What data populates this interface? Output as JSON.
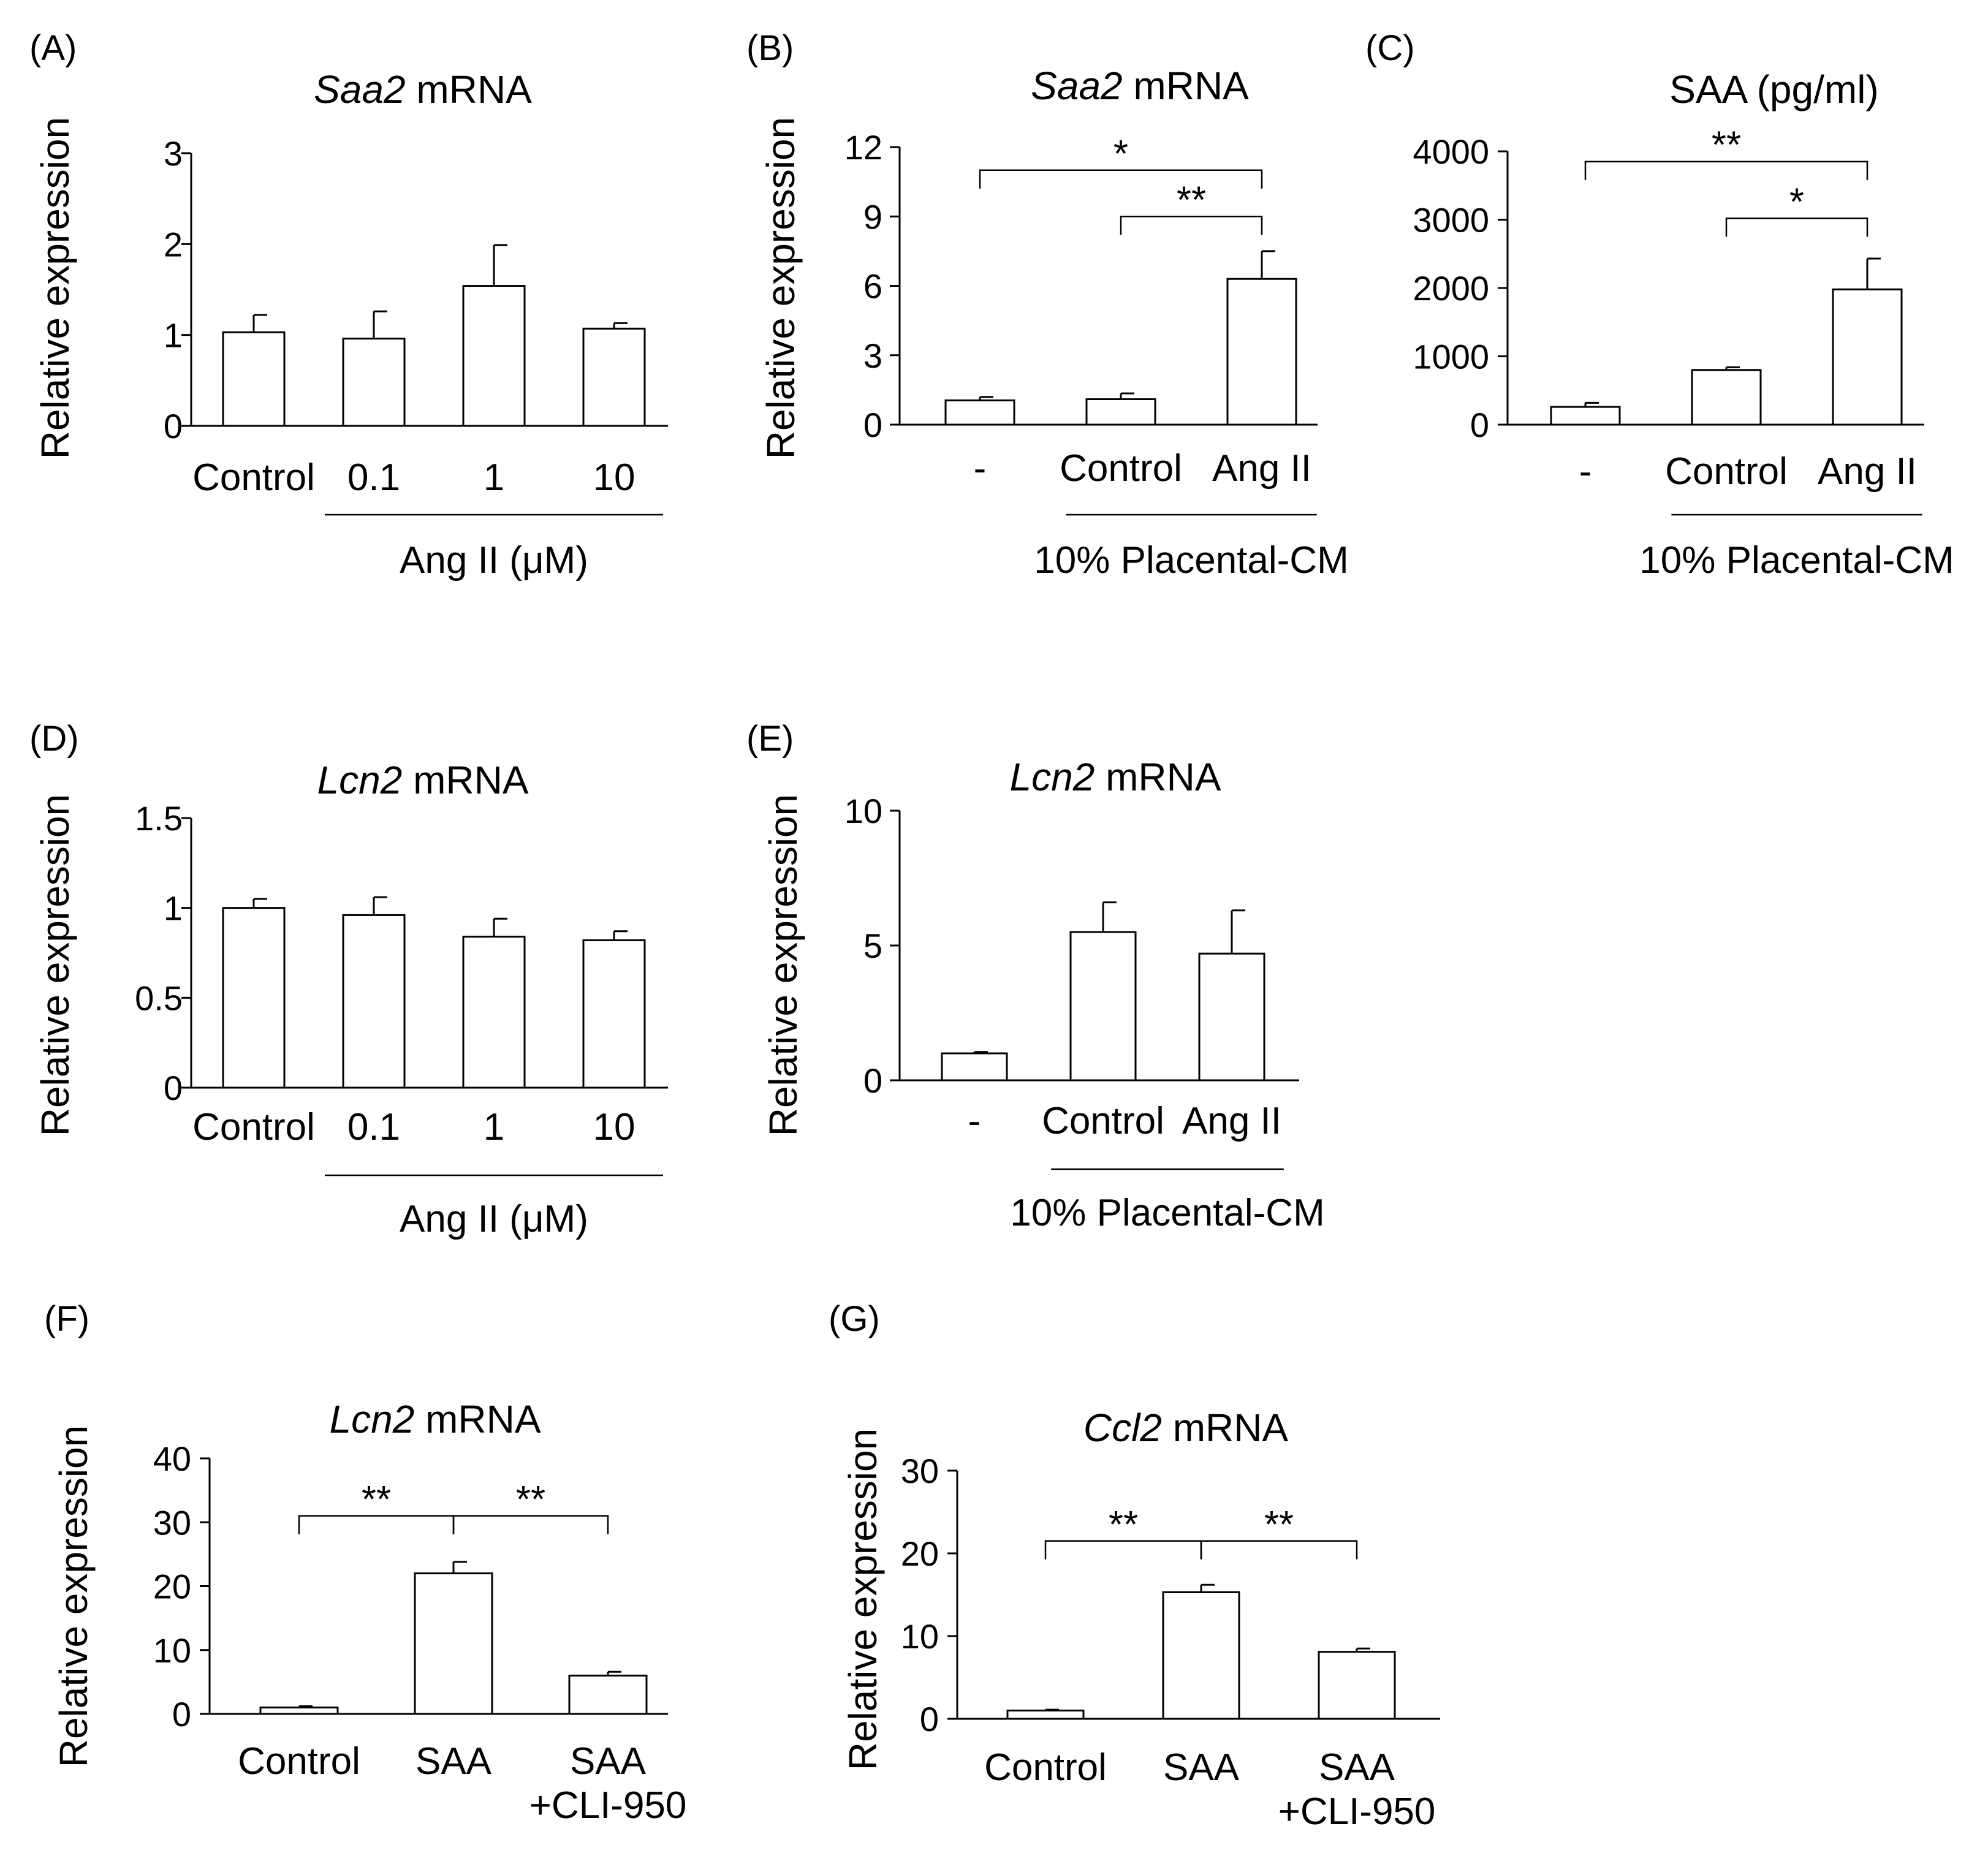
{
  "chart_data": [
    {
      "panel": "(A)",
      "type": "bar",
      "title_italic": "Saa2",
      "title_rest": " mRNA",
      "ylabel": "Relative expression",
      "ylim": [
        0,
        3
      ],
      "yticks": [
        0,
        1,
        2,
        3
      ],
      "categories": [
        "Control",
        "0.1",
        "1",
        "10"
      ],
      "values": [
        1.03,
        0.96,
        1.54,
        1.07
      ],
      "errors": [
        0.19,
        0.3,
        0.45,
        0.06
      ],
      "groups": [
        {
          "label": "Ang II (μM)",
          "from": 1,
          "to": 3
        }
      ],
      "significance": []
    },
    {
      "panel": "(B)",
      "type": "bar",
      "title_italic": "Saa2",
      "title_rest": " mRNA",
      "ylabel": "Relative expression",
      "ylim": [
        0,
        12
      ],
      "yticks": [
        0,
        3,
        6,
        9,
        12
      ],
      "categories": [
        "-",
        "Control",
        "Ang II"
      ],
      "values": [
        1.05,
        1.1,
        6.3
      ],
      "errors": [
        0.15,
        0.25,
        1.2
      ],
      "groups": [
        {
          "label": "10% Placental-CM",
          "from": 1,
          "to": 2
        }
      ],
      "significance": [
        {
          "from": 0,
          "to": 2,
          "label": "*",
          "y": 11.0
        },
        {
          "from": 1,
          "to": 2,
          "label": "**",
          "y": 9.0
        }
      ]
    },
    {
      "panel": "(C)",
      "type": "bar",
      "title_italic": "",
      "title_rest": "SAA (pg/ml)",
      "ylabel": "",
      "ylim": [
        0,
        4000
      ],
      "yticks": [
        0,
        1000,
        2000,
        3000,
        4000
      ],
      "categories": [
        "-",
        "Control",
        "Ang II"
      ],
      "values": [
        260,
        800,
        1980
      ],
      "errors": [
        60,
        40,
        450
      ],
      "groups": [
        {
          "label": "10% Placental-CM",
          "from": 1,
          "to": 2
        }
      ],
      "significance": [
        {
          "from": 0,
          "to": 2,
          "label": "**",
          "y": 3850
        },
        {
          "from": 1,
          "to": 2,
          "label": "*",
          "y": 3020
        }
      ]
    },
    {
      "panel": "(D)",
      "type": "bar",
      "title_italic": "Lcn2",
      "title_rest": " mRNA",
      "ylabel": "Relative expression",
      "ylim": [
        0,
        1.5
      ],
      "yticks": [
        0,
        0.5,
        1,
        1.5
      ],
      "categories": [
        "Control",
        "0.1",
        "1",
        "10"
      ],
      "values": [
        1.0,
        0.96,
        0.84,
        0.82
      ],
      "errors": [
        0.05,
        0.1,
        0.1,
        0.05
      ],
      "groups": [
        {
          "label": "Ang II (μM)",
          "from": 1,
          "to": 3
        }
      ],
      "significance": []
    },
    {
      "panel": "(E)",
      "type": "bar",
      "title_italic": "Lcn2",
      "title_rest": " mRNA",
      "ylabel": "Relative expression",
      "ylim": [
        0,
        10
      ],
      "yticks": [
        0,
        5,
        10
      ],
      "categories": [
        "-",
        "Control",
        "Ang II"
      ],
      "values": [
        1.0,
        5.5,
        4.7
      ],
      "errors": [
        0.05,
        1.1,
        1.6
      ],
      "groups": [
        {
          "label": "10% Placental-CM",
          "from": 1,
          "to": 2
        }
      ],
      "significance": []
    },
    {
      "panel": "(F)",
      "type": "bar",
      "title_italic": "Lcn2",
      "title_rest": " mRNA",
      "ylabel": "Relative expression",
      "ylim": [
        0,
        40
      ],
      "yticks": [
        0,
        10,
        20,
        30,
        40
      ],
      "categories": [
        "Control",
        "SAA",
        "SAA\n+CLI-950"
      ],
      "values": [
        1.0,
        22.0,
        6.0
      ],
      "errors": [
        0.2,
        1.8,
        0.6
      ],
      "groups": [],
      "significance": [
        {
          "from": 0,
          "to": 1,
          "label": "**",
          "y": 31
        },
        {
          "from": 1,
          "to": 2,
          "label": "**",
          "y": 31
        }
      ]
    },
    {
      "panel": "(G)",
      "type": "bar",
      "title_italic": "Ccl2",
      "title_rest": " mRNA",
      "ylabel": "Relative expression",
      "ylim": [
        0,
        30
      ],
      "yticks": [
        0,
        10,
        20,
        30
      ],
      "categories": [
        "Control",
        "SAA",
        "SAA\n+CLI-950"
      ],
      "values": [
        1.0,
        15.3,
        8.1
      ],
      "errors": [
        0.1,
        0.9,
        0.4
      ],
      "groups": [],
      "significance": [
        {
          "from": 0,
          "to": 1,
          "label": "**",
          "y": 21.5
        },
        {
          "from": 1,
          "to": 2,
          "label": "**",
          "y": 21.5
        }
      ]
    }
  ]
}
